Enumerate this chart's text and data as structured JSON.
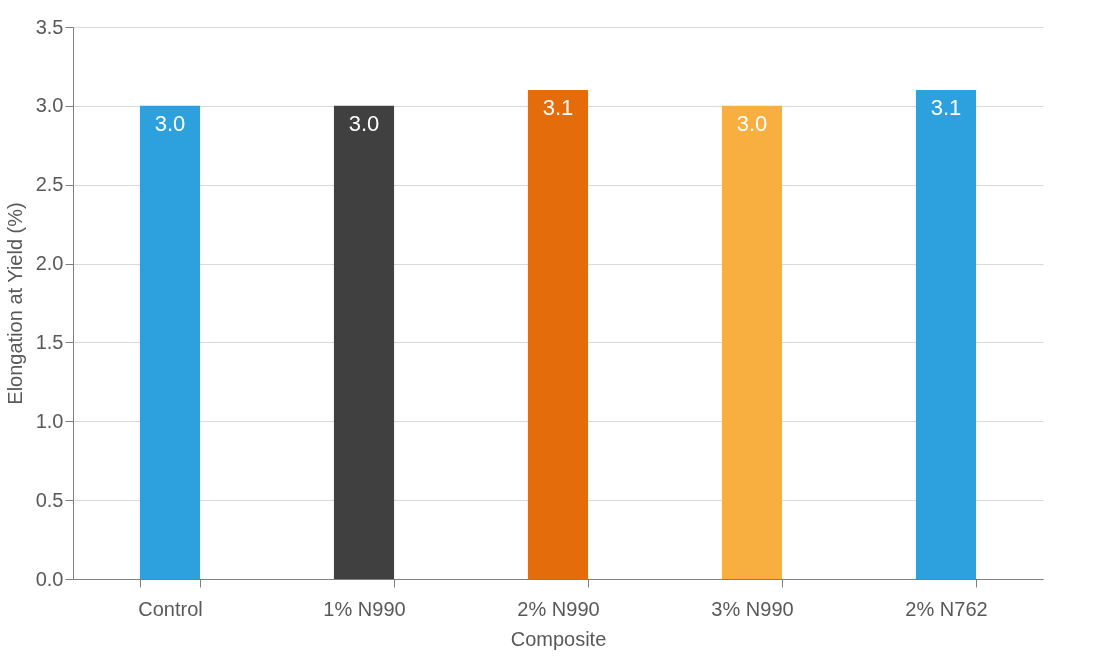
{
  "chart_data": {
    "type": "bar",
    "xlabel": "Composite",
    "ylabel": "Elongation at Yield (%)",
    "categories": [
      "Control",
      "1% N990",
      "2% N990",
      "3% N990",
      "2% N762"
    ],
    "values": [
      3.0,
      3.0,
      3.1,
      3.0,
      3.1
    ],
    "colors": [
      "#2ca1dd",
      "#404040",
      "#e46c0a",
      "#f9ae40",
      "#2ca1dd"
    ],
    "value_labels": [
      "3.0",
      "3.0",
      "3.1",
      "3.0",
      "3.1"
    ],
    "ylim": [
      0,
      3.5
    ],
    "yticks": [
      {
        "value": 0,
        "label": "0.0"
      },
      {
        "value": 0.5,
        "label": "0.5"
      },
      {
        "value": 1,
        "label": "1.0"
      },
      {
        "value": 1.5,
        "label": "1.5"
      },
      {
        "value": 2,
        "label": "2.0"
      },
      {
        "value": 2.5,
        "label": "2.5"
      },
      {
        "value": 3,
        "label": "3.0"
      },
      {
        "value": 3.5,
        "label": "3.5"
      }
    ],
    "grid": "y"
  }
}
